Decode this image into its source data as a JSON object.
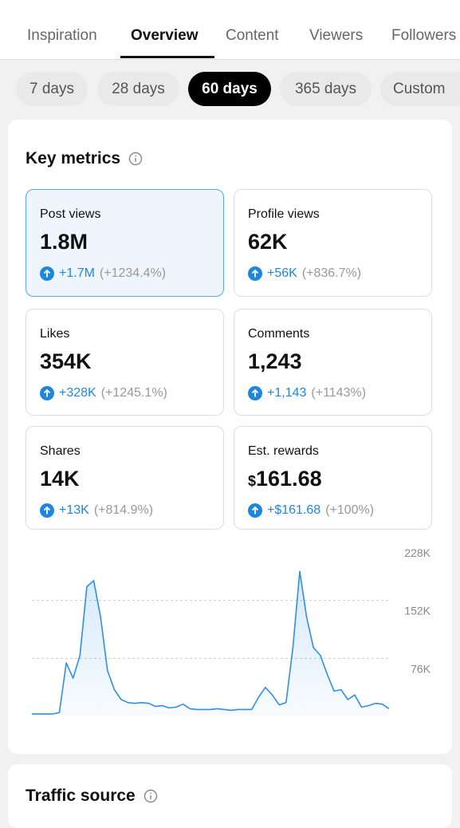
{
  "tabs": [
    "Inspiration",
    "Overview",
    "Content",
    "Viewers",
    "Followers"
  ],
  "periods": [
    "7 days",
    "28 days",
    "60 days",
    "365 days",
    "Custom"
  ],
  "key_metrics": {
    "title": "Key metrics",
    "items": [
      {
        "label": "Post views",
        "value": "1.8M",
        "change": "+1.7M",
        "percent": "(+1234.4%)"
      },
      {
        "label": "Profile views",
        "value": "62K",
        "change": "+56K",
        "percent": "(+836.7%)"
      },
      {
        "label": "Likes",
        "value": "354K",
        "change": "+328K",
        "percent": "(+1245.1%)"
      },
      {
        "label": "Comments",
        "value": "1,243",
        "change": "+1,143",
        "percent": "(+1143%)"
      },
      {
        "label": "Shares",
        "value": "14K",
        "change": "+13K",
        "percent": "(+814.9%)"
      },
      {
        "label": "Est. rewards",
        "currency": "$",
        "value": "161.68",
        "change": "+$161.68",
        "percent": "(+100%)"
      }
    ]
  },
  "chart_data": {
    "type": "line",
    "color": "#2f8fe6",
    "values": [
      3000,
      3000,
      3000,
      3000,
      5000,
      70000,
      50000,
      80000,
      170000,
      178000,
      130000,
      60000,
      35000,
      22000,
      18000,
      17000,
      18000,
      17000,
      13000,
      14000,
      11000,
      12000,
      16000,
      10000,
      9000,
      9000,
      9000,
      10000,
      9000,
      8000,
      9000,
      9000,
      9000,
      25000,
      38000,
      28000,
      15000,
      18000,
      90000,
      190000,
      130000,
      90000,
      80000,
      55000,
      33000,
      35000,
      22000,
      28000,
      12000,
      14000,
      17000,
      16000,
      10000
    ],
    "ylim": [
      0,
      228000
    ],
    "yticks": [
      {
        "value": 76000,
        "label": "76K"
      },
      {
        "value": 152000,
        "label": "152K"
      },
      {
        "value": 228000,
        "label": "228K"
      }
    ],
    "grid": true
  },
  "traffic_source": {
    "title": "Traffic source"
  }
}
